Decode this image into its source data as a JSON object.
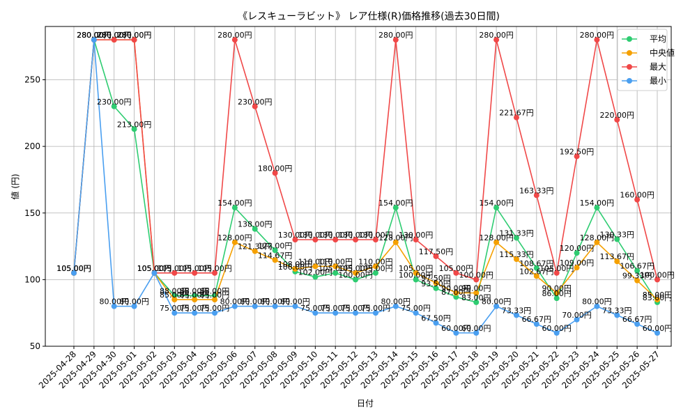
{
  "chart_data": {
    "type": "line",
    "title": "《レスキューラビット》 レア仕様(R)価格推移(過去30日間)",
    "xlabel": "日付",
    "ylabel": "値 (円)",
    "ylim": [
      50,
      290
    ],
    "yticks": [
      50,
      100,
      150,
      200,
      250
    ],
    "grid": true,
    "legend_position": "top-right",
    "label_suffix": "円",
    "categories": [
      "2025-04-28",
      "2025-04-29",
      "2025-04-30",
      "2025-05-01",
      "2025-05-02",
      "2025-05-03",
      "2025-05-04",
      "2025-05-05",
      "2025-05-06",
      "2025-05-07",
      "2025-05-08",
      "2025-05-09",
      "2025-05-10",
      "2025-05-11",
      "2025-05-12",
      "2025-05-13",
      "2025-05-14",
      "2025-05-15",
      "2025-05-16",
      "2025-05-17",
      "2025-05-18",
      "2025-05-19",
      "2025-05-20",
      "2025-05-21",
      "2025-05-22",
      "2025-05-23",
      "2025-05-24",
      "2025-05-25",
      "2025-05-26",
      "2025-05-27"
    ],
    "series": [
      {
        "name": "平均",
        "color": "#2ecc71",
        "values": [
          105.0,
          280.0,
          230.0,
          213.0,
          105.0,
          88.0,
          88.0,
          88.0,
          154.0,
          138.0,
          122.0,
          106.0,
          102.0,
          105.0,
          100.0,
          105.0,
          154.0,
          100.0,
          93.5,
          87.0,
          83.0,
          154.0,
          131.33,
          108.67,
          86.0,
          120.0,
          154.0,
          130.33,
          106.67,
          83.0
        ]
      },
      {
        "name": "中央値",
        "color": "#f5a000",
        "values": [
          105.0,
          280.0,
          280.0,
          280.0,
          105.0,
          85.0,
          85.0,
          85.0,
          128.0,
          121.33,
          114.67,
          108.0,
          110.0,
          110.0,
          105.0,
          110.0,
          128.0,
          105.0,
          97.5,
          90.0,
          90.0,
          128.0,
          115.33,
          102.67,
          90.0,
          109.0,
          128.0,
          113.67,
          99.33,
          85.0
        ]
      },
      {
        "name": "最大",
        "color": "#f04848",
        "values": [
          105.0,
          280.0,
          280.0,
          280.0,
          105.0,
          105.0,
          105.0,
          105.0,
          280.0,
          230.0,
          180.0,
          130.0,
          130.0,
          130.0,
          130.0,
          130.0,
          280.0,
          130.0,
          117.5,
          105.0,
          100.0,
          280.0,
          221.67,
          163.33,
          105.0,
          192.5,
          280.0,
          220.0,
          160.0,
          100.0
        ]
      },
      {
        "name": "最小",
        "color": "#4a9ff0",
        "values": [
          105.0,
          280.0,
          80.0,
          80.0,
          105.0,
          75.0,
          75.0,
          75.0,
          80.0,
          80.0,
          80.0,
          80.0,
          75.0,
          75.0,
          75.0,
          75.0,
          80.0,
          75.0,
          67.5,
          60.0,
          60.0,
          80.0,
          73.33,
          66.67,
          60.0,
          70.0,
          80.0,
          73.33,
          66.67,
          60.0
        ]
      }
    ]
  }
}
